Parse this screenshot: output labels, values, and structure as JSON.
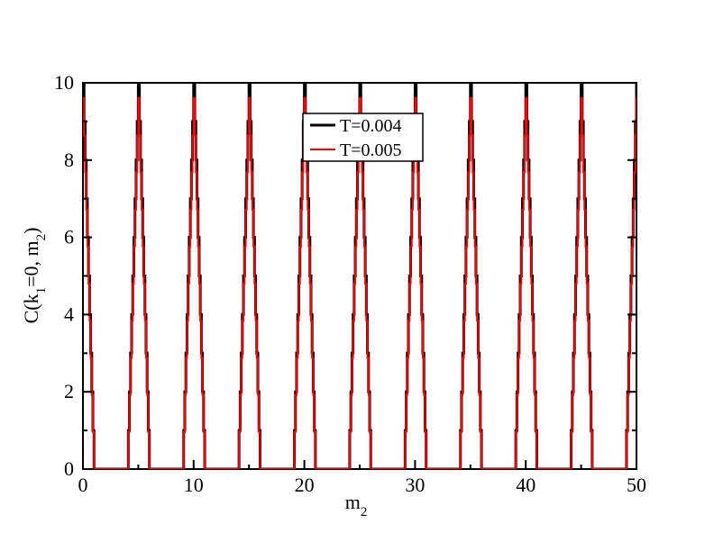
{
  "chart_data": {
    "type": "line",
    "xlabel": {
      "base": "m",
      "sub": "2"
    },
    "ylabel": {
      "parts": [
        {
          "t": "C(k",
          "sub": false
        },
        {
          "t": "1",
          "sub": true
        },
        {
          "t": "=0, m",
          "sub": false
        },
        {
          "t": "2",
          "sub": true
        },
        {
          "t": ")",
          "sub": false
        }
      ]
    },
    "xlim": [
      0,
      50
    ],
    "ylim": [
      0,
      10
    ],
    "x_ticks": [
      "0",
      "10",
      "20",
      "30",
      "40",
      "50"
    ],
    "y_ticks": [
      "0",
      "2",
      "4",
      "6",
      "8",
      "10"
    ],
    "grid": false,
    "legend_position": "top-center",
    "series": [
      {
        "name": "T=0.004",
        "color": "#000000",
        "peak_centers": [
          0,
          5,
          10,
          15,
          20,
          25,
          30,
          35,
          40,
          45,
          50
        ],
        "peak_value": 10,
        "peak_half_width": 1,
        "step": 0.1
      },
      {
        "name": "T=0.005",
        "color": "#ff0000",
        "peak_centers": [
          0,
          5,
          10,
          15,
          20,
          25,
          30,
          35,
          40,
          45,
          50
        ],
        "peak_value": 9.6,
        "peak_half_width": 1,
        "step": 0.1
      }
    ]
  }
}
